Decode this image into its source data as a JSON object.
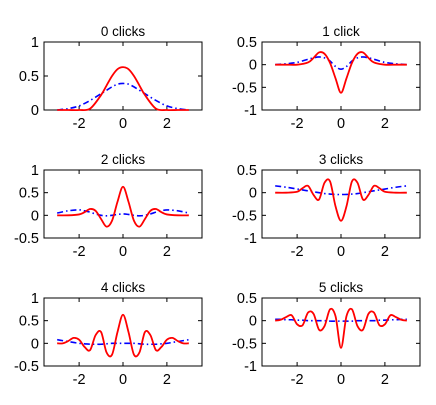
{
  "colors": {
    "red_series": "#ff0000",
    "blue_series": "#0000ff",
    "frame": "#000000",
    "background": "#ffffff"
  },
  "chart_data": [
    {
      "type": "line",
      "title": "0 clicks",
      "xlim": [
        -3.6,
        3.6
      ],
      "ylim": [
        0,
        1
      ],
      "xticks": [
        -2,
        0,
        2
      ],
      "xtick_labels": [
        "-2",
        "0",
        "2"
      ],
      "yticks": [
        0,
        0.5,
        1
      ],
      "ytick_labels": [
        "0",
        "0.5",
        "1"
      ],
      "grid": false,
      "x": [
        -3,
        -2.5,
        -2,
        -1.5,
        -1,
        -0.75,
        -0.5,
        -0.25,
        0,
        0.25,
        0.5,
        0.75,
        1,
        1.5,
        2,
        2.5,
        3
      ],
      "series": [
        {
          "style": "solid",
          "color": "#ff0000",
          "values": [
            0.0,
            0.0,
            0.0,
            0.02,
            0.22,
            0.36,
            0.5,
            0.6,
            0.63,
            0.6,
            0.5,
            0.36,
            0.22,
            0.02,
            0.0,
            0.0,
            0.0
          ]
        },
        {
          "style": "dashdot",
          "color": "#0000ff",
          "values": [
            0.0,
            0.02,
            0.06,
            0.14,
            0.24,
            0.29,
            0.34,
            0.38,
            0.39,
            0.38,
            0.34,
            0.29,
            0.24,
            0.14,
            0.06,
            0.02,
            0.0
          ]
        }
      ]
    },
    {
      "type": "line",
      "title": "1 click",
      "xlim": [
        -3.6,
        3.6
      ],
      "ylim": [
        -1,
        0.5
      ],
      "xticks": [
        -2,
        0,
        2
      ],
      "xtick_labels": [
        "-2",
        "0",
        "2"
      ],
      "yticks": [
        -1,
        -0.5,
        0,
        0.5
      ],
      "ytick_labels": [
        "-1",
        "-0.5",
        "0",
        "0.5"
      ],
      "grid": false,
      "x": [
        -3,
        -2.5,
        -2,
        -1.5,
        -1.25,
        -1,
        -0.75,
        -0.5,
        -0.25,
        0,
        0.25,
        0.5,
        0.75,
        1,
        1.25,
        1.5,
        2,
        2.5,
        3
      ],
      "series": [
        {
          "style": "solid",
          "color": "#ff0000",
          "values": [
            0.0,
            0.0,
            0.0,
            0.05,
            0.15,
            0.27,
            0.24,
            0.04,
            -0.3,
            -0.62,
            -0.3,
            0.04,
            0.24,
            0.27,
            0.15,
            0.05,
            0.0,
            0.0,
            0.0
          ]
        },
        {
          "style": "dashdot",
          "color": "#0000ff",
          "values": [
            0.0,
            0.02,
            0.05,
            0.12,
            0.15,
            0.17,
            0.15,
            0.08,
            -0.04,
            -0.1,
            -0.04,
            0.08,
            0.15,
            0.17,
            0.15,
            0.12,
            0.05,
            0.02,
            0.0
          ]
        }
      ]
    },
    {
      "type": "line",
      "title": "2 clicks",
      "xlim": [
        -3.6,
        3.6
      ],
      "ylim": [
        -0.5,
        1
      ],
      "xticks": [
        -2,
        0,
        2
      ],
      "xtick_labels": [
        "-2",
        "0",
        "2"
      ],
      "yticks": [
        -0.5,
        0,
        0.5,
        1
      ],
      "ytick_labels": [
        "-0.5",
        "0",
        "0.5",
        "1"
      ],
      "grid": false,
      "x": [
        -3,
        -2.5,
        -2,
        -1.75,
        -1.5,
        -1.25,
        -1,
        -0.75,
        -0.5,
        -0.25,
        0,
        0.25,
        0.5,
        0.75,
        1,
        1.25,
        1.5,
        1.75,
        2,
        2.5,
        3
      ],
      "series": [
        {
          "style": "solid",
          "color": "#ff0000",
          "values": [
            0.0,
            0.0,
            0.02,
            0.07,
            0.14,
            0.1,
            -0.08,
            -0.25,
            -0.12,
            0.3,
            0.63,
            0.3,
            -0.12,
            -0.25,
            -0.08,
            0.1,
            0.14,
            0.07,
            0.02,
            0.0,
            0.0
          ]
        },
        {
          "style": "dashdot",
          "color": "#0000ff",
          "values": [
            0.05,
            0.1,
            0.12,
            0.1,
            0.07,
            0.03,
            0.0,
            -0.01,
            0.0,
            0.02,
            0.03,
            0.02,
            0.0,
            -0.01,
            0.0,
            0.03,
            0.07,
            0.1,
            0.12,
            0.1,
            0.05
          ]
        }
      ]
    },
    {
      "type": "line",
      "title": "3 clicks",
      "xlim": [
        -3.6,
        3.6
      ],
      "ylim": [
        -1,
        0.5
      ],
      "xticks": [
        -2,
        0,
        2
      ],
      "xtick_labels": [
        "-2",
        "0",
        "2"
      ],
      "yticks": [
        -1,
        -0.5,
        0,
        0.5
      ],
      "ytick_labels": [
        "-1",
        "-0.5",
        "0",
        "0.5"
      ],
      "grid": false,
      "x": [
        -3,
        -2.5,
        -2,
        -1.75,
        -1.5,
        -1.25,
        -1,
        -0.75,
        -0.5,
        -0.25,
        0,
        0.25,
        0.5,
        0.75,
        1,
        1.25,
        1.5,
        1.75,
        2,
        2.5,
        3
      ],
      "series": [
        {
          "style": "solid",
          "color": "#ff0000",
          "values": [
            0.0,
            0.0,
            0.02,
            0.1,
            0.15,
            -0.05,
            -0.15,
            0.22,
            0.25,
            -0.3,
            -0.62,
            -0.3,
            0.25,
            0.22,
            -0.15,
            -0.05,
            0.15,
            0.1,
            0.02,
            0.0,
            0.0
          ]
        },
        {
          "style": "dashdot",
          "color": "#0000ff",
          "values": [
            0.15,
            0.12,
            0.08,
            0.06,
            0.04,
            0.02,
            0.0,
            -0.02,
            -0.03,
            -0.04,
            -0.04,
            -0.04,
            -0.03,
            -0.02,
            0.0,
            0.02,
            0.04,
            0.06,
            0.08,
            0.12,
            0.15
          ]
        }
      ]
    },
    {
      "type": "line",
      "title": "4 clicks",
      "xlim": [
        -3.6,
        3.6
      ],
      "ylim": [
        -0.5,
        1
      ],
      "xticks": [
        -2,
        0,
        2
      ],
      "xtick_labels": [
        "-2",
        "0",
        "2"
      ],
      "yticks": [
        -0.5,
        0,
        0.5,
        1
      ],
      "ytick_labels": [
        "-0.5",
        "0",
        "0.5",
        "1"
      ],
      "grid": false,
      "x": [
        -3,
        -2.75,
        -2.5,
        -2.25,
        -2,
        -1.75,
        -1.5,
        -1.25,
        -1,
        -0.75,
        -0.5,
        -0.25,
        0,
        0.25,
        0.5,
        0.75,
        1,
        1.25,
        1.5,
        1.75,
        2,
        2.25,
        2.5,
        2.75,
        3
      ],
      "series": [
        {
          "style": "solid",
          "color": "#ff0000",
          "values": [
            0.0,
            0.0,
            0.05,
            0.12,
            0.08,
            -0.08,
            -0.15,
            0.18,
            0.25,
            -0.2,
            -0.25,
            0.25,
            0.63,
            0.25,
            -0.25,
            -0.2,
            0.25,
            0.18,
            -0.15,
            -0.08,
            0.08,
            0.12,
            0.05,
            0.0,
            0.0
          ]
        },
        {
          "style": "dashdot",
          "color": "#0000ff",
          "values": [
            0.08,
            0.06,
            0.04,
            0.02,
            0.0,
            -0.01,
            -0.02,
            -0.02,
            -0.02,
            -0.01,
            0.0,
            0.0,
            0.0,
            0.0,
            0.0,
            -0.01,
            -0.02,
            -0.02,
            -0.02,
            -0.01,
            0.0,
            0.02,
            0.04,
            0.06,
            0.08
          ]
        }
      ]
    },
    {
      "type": "line",
      "title": "5 clicks",
      "xlim": [
        -3.6,
        3.6
      ],
      "ylim": [
        -1,
        0.5
      ],
      "xticks": [
        -2,
        0,
        2
      ],
      "xtick_labels": [
        "-2",
        "0",
        "2"
      ],
      "yticks": [
        -1,
        -0.5,
        0,
        0.5
      ],
      "ytick_labels": [
        "-1",
        "-0.5",
        "0",
        "0.5"
      ],
      "grid": false,
      "x": [
        -3,
        -2.75,
        -2.5,
        -2.25,
        -2,
        -1.75,
        -1.5,
        -1.25,
        -1,
        -0.75,
        -0.5,
        -0.25,
        0,
        0.25,
        0.5,
        0.75,
        1,
        1.25,
        1.5,
        1.75,
        2,
        2.25,
        2.5,
        2.75,
        3
      ],
      "series": [
        {
          "style": "solid",
          "color": "#ff0000",
          "values": [
            0.0,
            0.02,
            0.08,
            0.12,
            -0.08,
            -0.1,
            0.18,
            0.15,
            -0.2,
            -0.12,
            0.25,
            0.1,
            -0.6,
            0.1,
            0.25,
            -0.12,
            -0.2,
            0.15,
            0.18,
            -0.1,
            -0.08,
            0.12,
            0.08,
            0.02,
            0.0
          ]
        },
        {
          "style": "dashdot",
          "color": "#0000ff",
          "values": [
            0.03,
            0.03,
            0.02,
            0.02,
            0.01,
            0.01,
            0.0,
            0.0,
            0.0,
            0.0,
            -0.01,
            -0.01,
            -0.01,
            -0.01,
            -0.01,
            0.0,
            0.0,
            0.0,
            0.0,
            0.01,
            0.01,
            0.02,
            0.02,
            0.03,
            0.03
          ]
        }
      ]
    }
  ]
}
